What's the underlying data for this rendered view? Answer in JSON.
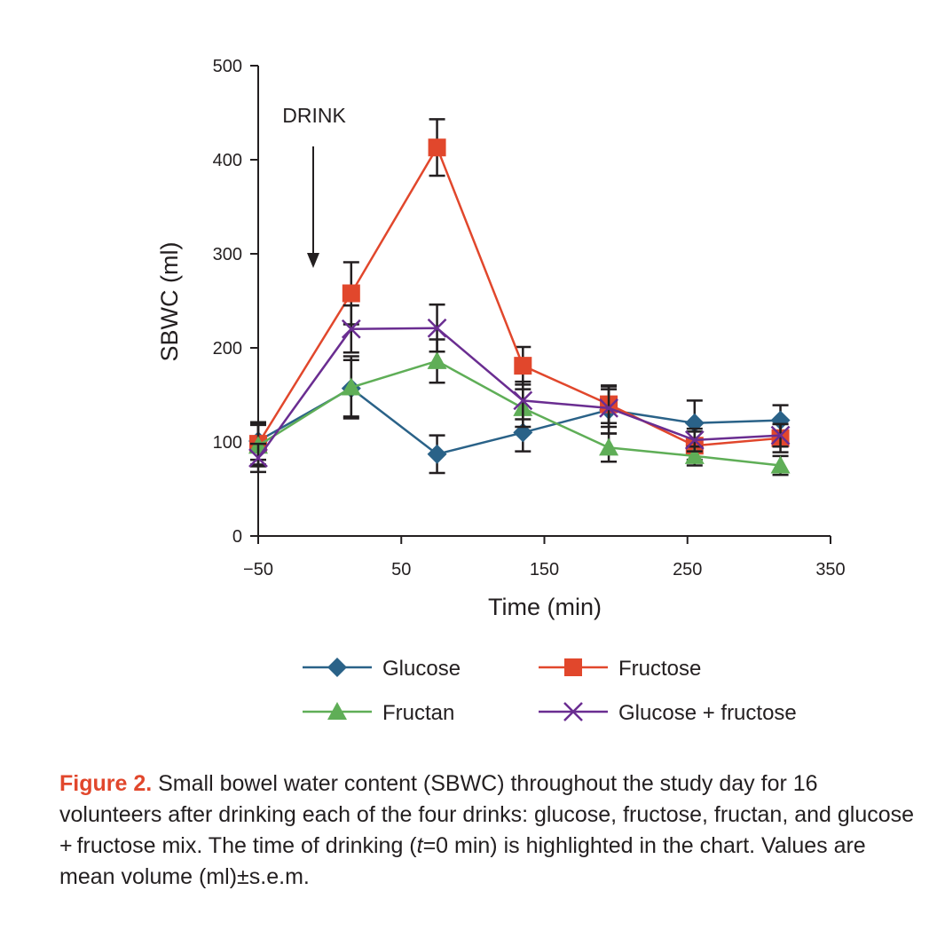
{
  "chart_data": {
    "type": "line",
    "xlabel": "Time (min)",
    "ylabel": "SBWC (ml)",
    "xlim": [
      -50,
      350
    ],
    "ylim": [
      0,
      500
    ],
    "xticks": [
      -50,
      50,
      150,
      250,
      350
    ],
    "xtick_labels": [
      "−50",
      "50",
      "150",
      "250",
      "350"
    ],
    "yticks": [
      0,
      100,
      200,
      300,
      400,
      500
    ],
    "grid": false,
    "legend_position": "bottom",
    "annotation": {
      "text": "DRINK",
      "x": 0
    },
    "x": [
      -50,
      15,
      75,
      135,
      195,
      255,
      315
    ],
    "series": [
      {
        "name": "Glucose",
        "color": "#2a6288",
        "marker": "diamond",
        "values": [
          101,
          157,
          87,
          110,
          134,
          120,
          123
        ],
        "errors": [
          20,
          30,
          20,
          20,
          25,
          24,
          16
        ]
      },
      {
        "name": "Fructose",
        "color": "#e1472c",
        "marker": "square",
        "values": [
          98,
          258,
          413,
          181,
          140,
          96,
          104
        ],
        "errors": [
          22,
          33,
          30,
          20,
          20,
          15,
          15
        ]
      },
      {
        "name": "Fructan",
        "color": "#5fae57",
        "marker": "triangle",
        "values": [
          96,
          158,
          186,
          136,
          94,
          85,
          75
        ],
        "errors": [
          22,
          33,
          23,
          20,
          15,
          10,
          10
        ]
      },
      {
        "name": "Glucose + fructose",
        "color": "#6a2d91",
        "marker": "x",
        "values": [
          83,
          220,
          221,
          144,
          136,
          102,
          107
        ],
        "errors": [
          15,
          25,
          25,
          20,
          20,
          12,
          12
        ]
      }
    ]
  },
  "caption": {
    "label": "Figure 2.",
    "text_1": " Small bowel water content (SBWC) throughout the study day for 16 volunteers after drinking each of the four drinks: glucose, fructose, fructan, and glucose + fructose mix. The time of drinking (",
    "t": "t",
    "text_2": "=0 min) is highlighted in the chart. Values are mean volume (ml)±s.e.m."
  }
}
